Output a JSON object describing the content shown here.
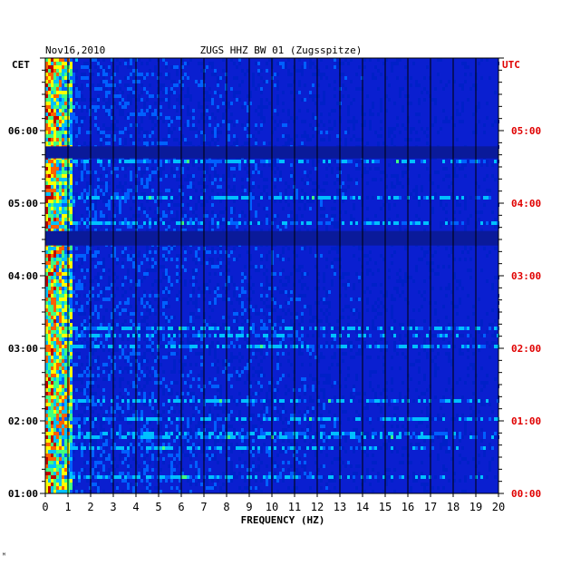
{
  "chart_data": {
    "type": "heatmap",
    "date": "Nov16,2010",
    "title": "ZUGS HHZ BW 01 (Zugsspitze)",
    "left_timezone": "CET",
    "right_timezone": "UTC",
    "xlabel": "FREQUENCY (HZ)",
    "x_ticks": [
      "0",
      "1",
      "2",
      "3",
      "4",
      "5",
      "6",
      "7",
      "8",
      "9",
      "10",
      "11",
      "12",
      "13",
      "14",
      "15",
      "16",
      "17",
      "18",
      "19",
      "20"
    ],
    "xlim": [
      0,
      20
    ],
    "y_ticks_left": [
      "06:00",
      "05:00",
      "04:00",
      "03:00",
      "02:00",
      "01:00"
    ],
    "y_ticks_right": [
      "05:00",
      "04:00",
      "03:00",
      "02:00",
      "01:00",
      "00:00"
    ],
    "time_range_cet": [
      "01:00",
      "07:00"
    ],
    "quiet_bands_cet": [
      [
        "05:37",
        "05:47"
      ],
      [
        "04:25",
        "04:37"
      ]
    ],
    "colors": {
      "background": "#0a1fd0",
      "quiet_band": "#0a1a9a",
      "axis_text": "#000000",
      "utc_text": "#e00000",
      "grid": "#000000"
    },
    "colormap": [
      "#0020c8",
      "#0060ff",
      "#00c0ff",
      "#40ff80",
      "#ffff00",
      "#ff6000",
      "#c00000"
    ]
  },
  "footer_mark": "ᴹ"
}
